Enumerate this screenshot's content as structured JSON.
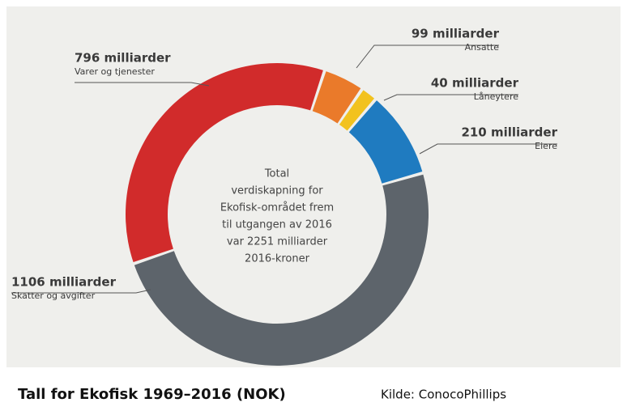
{
  "chart_data": {
    "type": "donut",
    "categories": [
      "Varer og tjenester",
      "Ansatte",
      "Låneytere",
      "Eiere",
      "Skatter og avgifter"
    ],
    "values": [
      796,
      99,
      40,
      210,
      1106
    ],
    "value_labels": [
      "796 milliarder",
      "99 milliarder",
      "40 milliarder",
      "210 milliarder",
      "1106 milliarder"
    ],
    "colors": [
      "#d12b2b",
      "#ea7a2a",
      "#f2c21e",
      "#1f7bc0",
      "#5d646b"
    ],
    "center_text": [
      "Total",
      "verdiskapning for",
      "Ekofisk-området frem",
      "til utgangen av 2016",
      "var 2251 milliarder",
      "2016-kroner"
    ],
    "caption": "Tall for Ekofisk 1969–2016 (NOK)",
    "source": "Kilde: ConocoPhillips"
  }
}
